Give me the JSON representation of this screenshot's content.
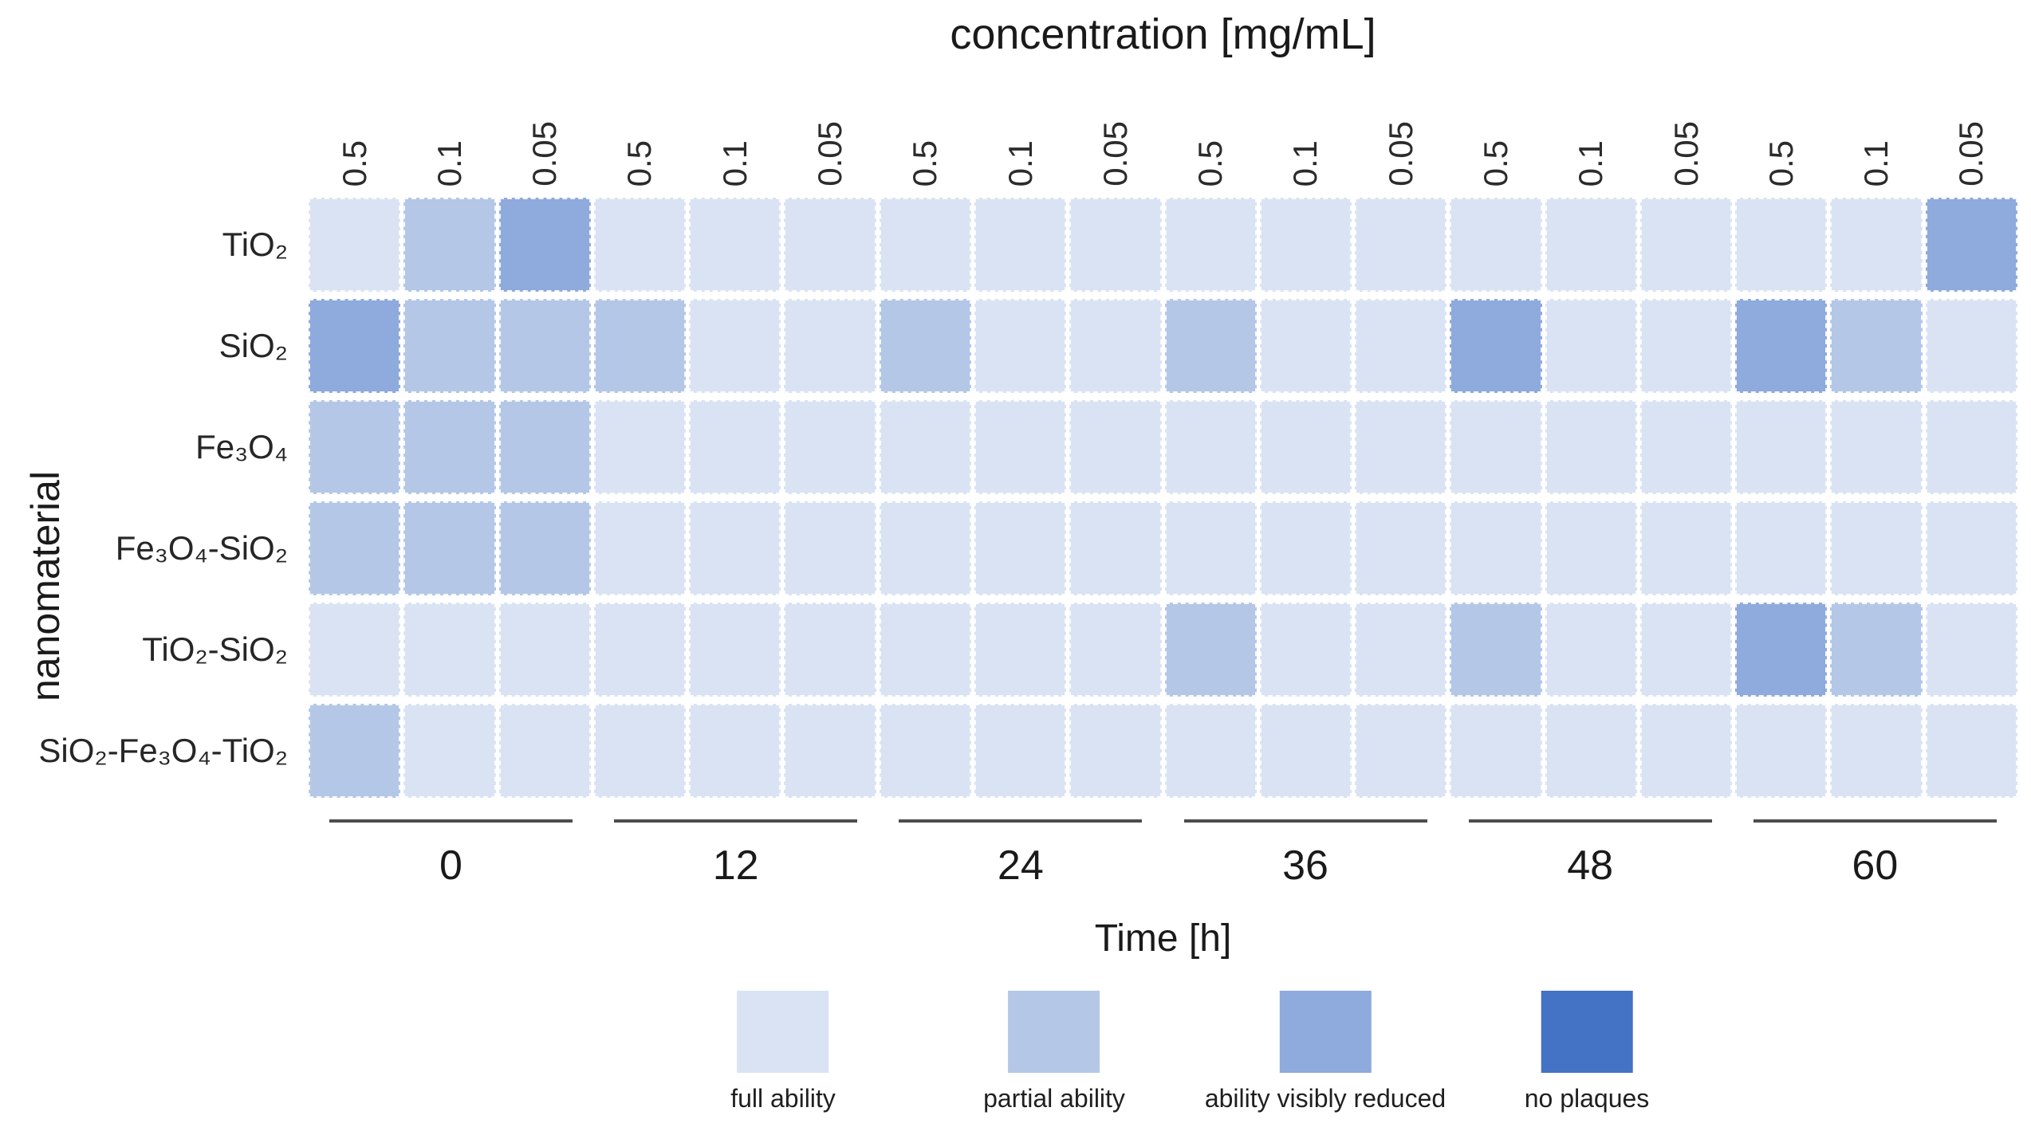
{
  "figure": {
    "title": "concentration [mg/mL]",
    "x_axis_label": "Time [h]",
    "y_axis_label": "nanomaterial"
  },
  "chart_data": {
    "type": "heatmap",
    "title": "concentration [mg/mL]",
    "xlabel": "Time [h]",
    "ylabel": "nanomaterial",
    "time_groups": [
      "0",
      "12",
      "24",
      "36",
      "48",
      "60"
    ],
    "concentrations_per_group": [
      "0.5",
      "0.1",
      "0.05"
    ],
    "rows": [
      "TiO₂",
      "SiO₂",
      "Fe₃O₄",
      "Fe₃O₄-SiO₂",
      "TiO₂-SiO₂",
      "SiO₂-Fe₃O₄-TiO₂"
    ],
    "levels": [
      {
        "level": 1,
        "label": "full ability",
        "color": "#dae3f3"
      },
      {
        "level": 2,
        "label": "partial ability",
        "color": "#b4c7e7"
      },
      {
        "level": 3,
        "label": "ability visibly reduced",
        "color": "#8faadc"
      },
      {
        "level": 4,
        "label": "no plaques",
        "color": "#4472c4"
      }
    ],
    "values": [
      [
        1,
        2,
        3,
        1,
        1,
        1,
        1,
        1,
        1,
        1,
        1,
        1,
        1,
        1,
        1,
        1,
        1,
        3
      ],
      [
        3,
        2,
        2,
        2,
        1,
        1,
        2,
        1,
        1,
        2,
        1,
        1,
        3,
        1,
        1,
        3,
        2,
        1
      ],
      [
        2,
        2,
        2,
        1,
        1,
        1,
        1,
        1,
        1,
        1,
        1,
        1,
        1,
        1,
        1,
        1,
        1,
        1
      ],
      [
        2,
        2,
        2,
        1,
        1,
        1,
        1,
        1,
        1,
        1,
        1,
        1,
        1,
        1,
        1,
        1,
        1,
        1
      ],
      [
        1,
        1,
        1,
        1,
        1,
        1,
        1,
        1,
        1,
        2,
        1,
        1,
        2,
        1,
        1,
        3,
        2,
        1
      ],
      [
        2,
        1,
        1,
        1,
        1,
        1,
        1,
        1,
        1,
        1,
        1,
        1,
        1,
        1,
        1,
        1,
        1,
        1
      ]
    ],
    "legend_position": "bottom",
    "grid": "white dashed separators"
  }
}
